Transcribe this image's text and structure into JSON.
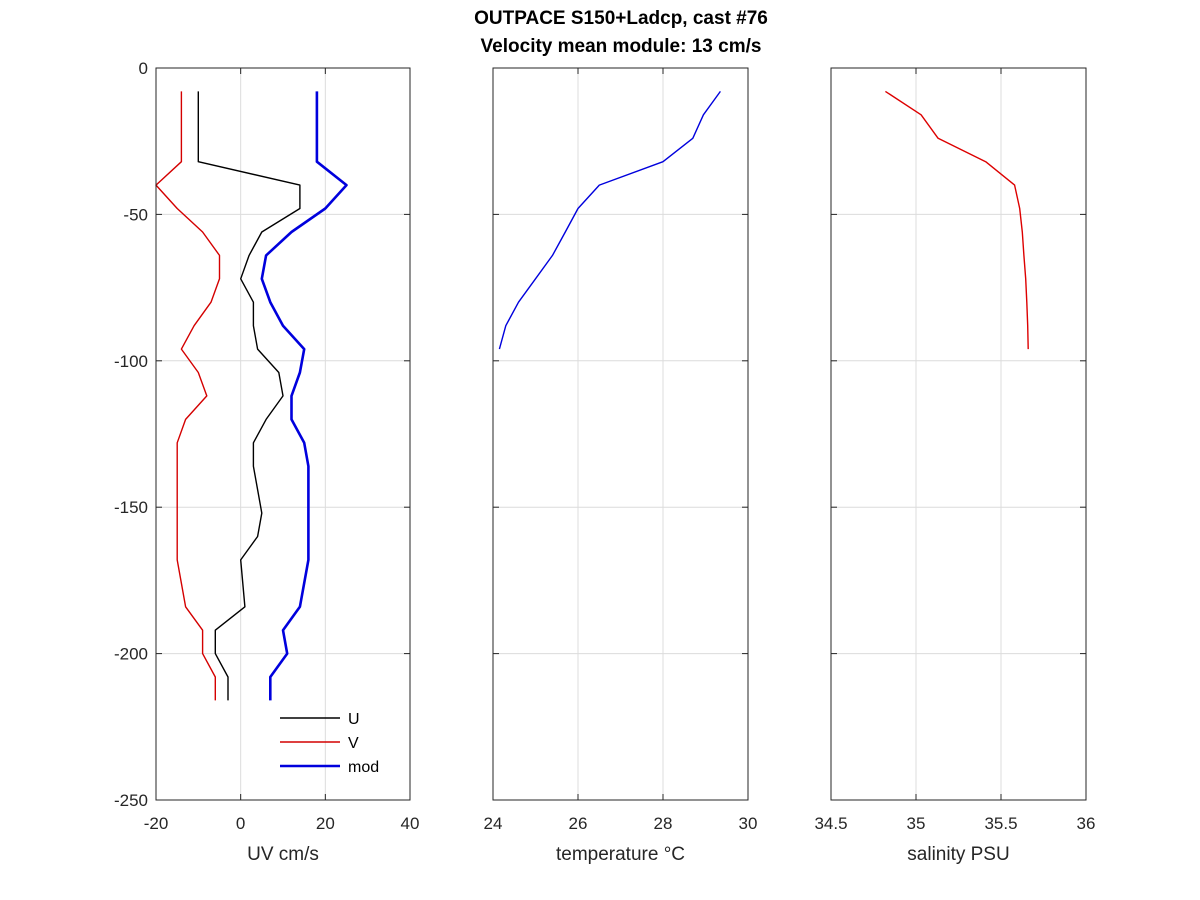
{
  "chart_data": {
    "type": "line",
    "title": "OUTPACE S150+Ladcp, cast #76",
    "subtitle": "Velocity mean module:  13 cm/s",
    "ylim": [
      -250,
      0
    ],
    "y_ticks": [
      "0",
      "-50",
      "-100",
      "-150",
      "-200",
      "-250"
    ],
    "y_tick_values": [
      0,
      -50,
      -100,
      -150,
      -200,
      -250
    ],
    "grid": true,
    "panels": [
      {
        "xlabel": "UV cm/s",
        "xlim": [
          -20,
          40
        ],
        "x_ticks": [
          "-20",
          "0",
          "20",
          "40"
        ],
        "x_tick_values": [
          -20,
          0,
          20,
          40
        ],
        "legend_position": "bottom-right",
        "series": [
          {
            "name": "U",
            "color": "#000000",
            "width": 1.4,
            "x": [
              -10,
              -10,
              -10,
              14,
              14,
              5,
              2,
              0,
              3,
              3,
              4,
              9,
              10,
              6,
              3,
              3,
              4,
              5,
              4,
              0,
              1,
              -6,
              -6,
              -3,
              -3
            ],
            "y": [
              -8,
              -16,
              -32,
              -40,
              -48,
              -56,
              -64,
              -72,
              -80,
              -88,
              -96,
              -104,
              -112,
              -120,
              -128,
              -136,
              -144,
              -152,
              -160,
              -168,
              -184,
              -192,
              -200,
              -208,
              -216
            ]
          },
          {
            "name": "V",
            "color": "#d40000",
            "width": 1.4,
            "x": [
              -14,
              -14,
              -14,
              -20,
              -15,
              -9,
              -5,
              -5,
              -7,
              -11,
              -14,
              -10,
              -8,
              -13,
              -15,
              -15,
              -15,
              -15,
              -15,
              -15,
              -13,
              -9,
              -9,
              -6,
              -6
            ],
            "y": [
              -8,
              -16,
              -32,
              -40,
              -48,
              -56,
              -64,
              -72,
              -80,
              -88,
              -96,
              -104,
              -112,
              -120,
              -128,
              -136,
              -144,
              -152,
              -160,
              -168,
              -184,
              -192,
              -200,
              -208,
              -216
            ]
          },
          {
            "name": "mod",
            "color": "#0000dd",
            "width": 2.6,
            "x": [
              18,
              18,
              18,
              25,
              20,
              12,
              6,
              5,
              7,
              10,
              15,
              14,
              12,
              12,
              15,
              16,
              16,
              16,
              16,
              16,
              14,
              10,
              11,
              7,
              7
            ],
            "y": [
              -8,
              -16,
              -32,
              -40,
              -48,
              -56,
              -64,
              -72,
              -80,
              -88,
              -96,
              -104,
              -112,
              -120,
              -128,
              -136,
              -144,
              -152,
              -160,
              -168,
              -184,
              -192,
              -200,
              -208,
              -216
            ]
          }
        ]
      },
      {
        "xlabel": "temperature °C",
        "xlim": [
          24,
          30
        ],
        "x_ticks": [
          "24",
          "26",
          "28",
          "30"
        ],
        "x_tick_values": [
          24,
          26,
          28,
          30
        ],
        "series": [
          {
            "color": "#0000dd",
            "width": 1.4,
            "x": [
              29.35,
              28.95,
              28.7,
              28.0,
              26.5,
              26.0,
              25.7,
              25.4,
              25.0,
              24.6,
              24.3,
              24.15
            ],
            "y": [
              -8,
              -16,
              -24,
              -32,
              -40,
              -48,
              -56,
              -64,
              -72,
              -80,
              -88,
              -96
            ]
          }
        ]
      },
      {
        "xlabel": "salinity PSU",
        "xlim": [
          34.5,
          36
        ],
        "x_ticks": [
          "34.5",
          "35",
          "35.5",
          "36"
        ],
        "x_tick_values": [
          34.5,
          35,
          35.5,
          36
        ],
        "series": [
          {
            "color": "#dd0000",
            "width": 1.4,
            "x": [
              34.82,
              35.03,
              35.13,
              35.41,
              35.58,
              35.61,
              35.625,
              35.635,
              35.645,
              35.652,
              35.657,
              35.66
            ],
            "y": [
              -8,
              -16,
              -24,
              -32,
              -40,
              -48,
              -56,
              -64,
              -72,
              -80,
              -88,
              -96
            ]
          }
        ]
      }
    ]
  }
}
